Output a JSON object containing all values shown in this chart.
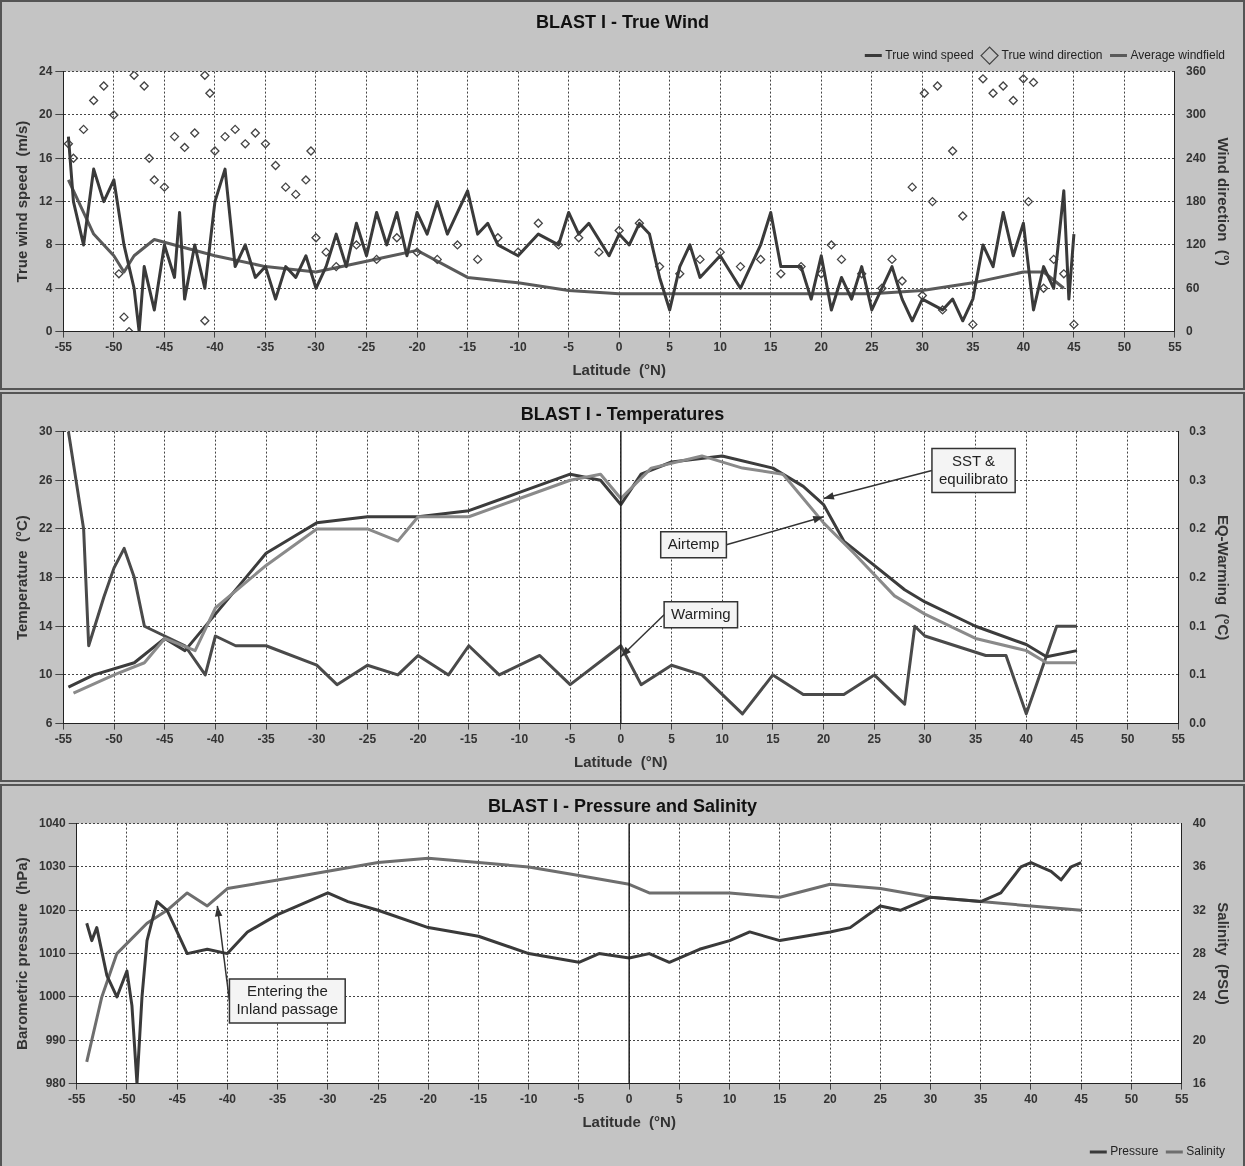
{
  "chart_data": [
    {
      "type": "line",
      "title": "BLAST I - True Wind",
      "xlabel": "Latitude  (°N)",
      "ylabel": "True wind speed  (m/s)",
      "y2label": "Wind direction  (°)",
      "xlim": [
        -55,
        55
      ],
      "xticks": [
        -55,
        -50,
        -45,
        -40,
        -35,
        -30,
        -25,
        -20,
        -15,
        -10,
        -5,
        0,
        5,
        10,
        15,
        20,
        25,
        30,
        35,
        40,
        45,
        50,
        55
      ],
      "ylim": [
        0,
        24
      ],
      "yticks": [
        0,
        4,
        8,
        12,
        16,
        20,
        24
      ],
      "y2lim": [
        0,
        360
      ],
      "y2ticks": [
        0,
        60,
        120,
        180,
        240,
        300,
        360
      ],
      "grid": true,
      "legend": "top right",
      "series": [
        {
          "name": "True wind speed",
          "color": "#3a3a3a",
          "x": [
            -54.5,
            -54,
            -53,
            -52,
            -51,
            -50,
            -49,
            -48,
            -47.5,
            -47,
            -46,
            -45,
            -44,
            -43.5,
            -43,
            -42,
            -41,
            -40,
            -39,
            -38,
            -37,
            -36,
            -35,
            -34,
            -33,
            -32,
            -31,
            -30,
            -29,
            -28,
            -27,
            -26,
            -25,
            -24,
            -23,
            -22,
            -21,
            -20,
            -19,
            -18,
            -17,
            -16,
            -15,
            -14,
            -13,
            -12,
            -10,
            -8,
            -6,
            -5,
            -4,
            -3,
            -1,
            0,
            1,
            2,
            3,
            4,
            5,
            6,
            7,
            8,
            10,
            12,
            14,
            15,
            16,
            18,
            19,
            20,
            21,
            22,
            23,
            24,
            25,
            27,
            28,
            29,
            30,
            32,
            33,
            34,
            35,
            36,
            37,
            38,
            39,
            40,
            41,
            42,
            43,
            44,
            44.5,
            45
          ],
          "values": [
            18,
            12,
            8,
            15,
            12,
            14,
            8,
            4,
            0,
            6,
            2,
            8,
            5,
            11,
            3,
            8,
            4,
            12,
            15,
            6,
            8,
            5,
            6,
            3,
            6,
            5,
            7,
            4,
            6,
            9,
            6,
            10,
            7,
            11,
            8,
            11,
            7,
            11,
            9,
            12,
            9,
            11,
            13,
            9,
            10,
            8,
            7,
            9,
            8,
            11,
            9,
            10,
            7,
            9,
            8,
            10,
            9,
            5,
            2,
            6,
            8,
            5,
            7,
            4,
            8,
            11,
            6,
            6,
            3,
            7,
            2,
            5,
            3,
            6,
            2,
            6,
            3,
            1,
            3,
            2,
            3,
            1,
            3,
            8,
            6,
            11,
            7,
            10,
            2,
            6,
            4,
            13,
            3,
            9
          ]
        },
        {
          "name": "True wind direction",
          "type": "scatter",
          "axis": "y2",
          "marker": "diamond",
          "color": "#444444",
          "x": [
            -54.5,
            -54,
            -53,
            -52,
            -51,
            -50,
            -49.5,
            -49,
            -48.5,
            -48,
            -47,
            -46.5,
            -46,
            -45,
            -44,
            -43,
            -42,
            -41,
            -41,
            -40.5,
            -40,
            -39,
            -38,
            -37,
            -36,
            -35,
            -34,
            -33,
            -32,
            -31,
            -30.5,
            -30,
            -29,
            -28,
            -26,
            -24,
            -22,
            -20,
            -18,
            -16,
            -14,
            -12,
            -10,
            -8,
            -6,
            -4,
            -2,
            0,
            2,
            4,
            6,
            8,
            10,
            12,
            14,
            16,
            18,
            20,
            21,
            22,
            24,
            26,
            27,
            28,
            29,
            30,
            30.2,
            31,
            31.5,
            32,
            33,
            34,
            35,
            36,
            37,
            38,
            39,
            40,
            40.5,
            41,
            42,
            43,
            44,
            45
          ],
          "values": [
            260,
            240,
            280,
            320,
            340,
            300,
            80,
            20,
            0,
            355,
            340,
            240,
            210,
            200,
            270,
            255,
            275,
            15,
            355,
            330,
            250,
            270,
            280,
            260,
            275,
            260,
            230,
            200,
            190,
            210,
            250,
            130,
            110,
            90,
            120,
            100,
            130,
            110,
            100,
            120,
            100,
            130,
            110,
            150,
            120,
            130,
            110,
            140,
            150,
            90,
            80,
            100,
            110,
            90,
            100,
            80,
            90,
            80,
            120,
            100,
            80,
            60,
            100,
            70,
            200,
            50,
            330,
            180,
            340,
            30,
            250,
            160,
            10,
            350,
            330,
            340,
            320,
            350,
            180,
            345,
            60,
            100,
            80,
            10
          ]
        },
        {
          "name": "Average windfield",
          "color": "#5a5a5a",
          "x": [
            -54.5,
            -52,
            -50,
            -49,
            -48,
            -46,
            -44,
            -40,
            -35,
            -30,
            -25,
            -20,
            -15,
            -10,
            -5,
            0,
            10,
            20,
            25,
            30,
            35,
            40,
            42,
            44
          ],
          "values": [
            14,
            9,
            7,
            5.5,
            7,
            8.5,
            8,
            7,
            6,
            5.5,
            6.5,
            7.5,
            5,
            4.5,
            3.8,
            3.5,
            3.5,
            3.5,
            3.5,
            3.8,
            4.5,
            5.5,
            5.5,
            4
          ]
        }
      ]
    },
    {
      "type": "line",
      "title": "BLAST I - Temperatures",
      "xlabel": "Latitude  (°N)",
      "ylabel": "Temperature  (°C)",
      "y2label": "EQ-Warming  (°C)",
      "xlim": [
        -55,
        55
      ],
      "xticks": [
        -55,
        -50,
        -45,
        -40,
        -35,
        -30,
        -25,
        -20,
        -15,
        -10,
        -5,
        0,
        5,
        10,
        15,
        20,
        25,
        30,
        35,
        40,
        45,
        50,
        55
      ],
      "ylim": [
        6,
        30
      ],
      "yticks": [
        6,
        10,
        14,
        18,
        22,
        26,
        30
      ],
      "y2lim": [
        0,
        0.3
      ],
      "y2ticks": [
        {
          "value": 0,
          "label": "0.0"
        },
        {
          "value": 0.05,
          "label": "0.1"
        },
        {
          "value": 0.1,
          "label": "0.1"
        },
        {
          "value": 0.15,
          "label": "0.2"
        },
        {
          "value": 0.2,
          "label": "0.2"
        },
        {
          "value": 0.25,
          "label": "0.3"
        },
        {
          "value": 0.3,
          "label": "0.3"
        }
      ],
      "grid": true,
      "ref_lines": [
        {
          "axis": "x",
          "value": 0
        }
      ],
      "annotations": [
        {
          "text": "SST & equilibrato",
          "x": 20,
          "y": 24.5
        },
        {
          "text": "Airtemp",
          "x": 20,
          "y": 23
        },
        {
          "text": "Warming",
          "x": 0,
          "y": 11.5
        }
      ],
      "series": [
        {
          "color": "#8a8a8a",
          "x": [
            -54,
            -50,
            -47,
            -45,
            -42,
            -40,
            -35,
            -30,
            -25,
            -22,
            -20,
            -15,
            -10,
            -5,
            -2,
            0,
            3,
            8,
            12,
            16,
            20,
            23,
            27,
            30,
            35,
            40,
            42,
            45
          ],
          "values": [
            8.5,
            10,
            11,
            13,
            12,
            15.5,
            19,
            22,
            22,
            21,
            23,
            23,
            24.5,
            26,
            26.5,
            24.5,
            27,
            28,
            27,
            26.5,
            22.5,
            20,
            16.5,
            15,
            13,
            12,
            11,
            11
          ]
        },
        {
          "color": "#3c3c3c",
          "x": [
            -54.5,
            -52,
            -48,
            -45,
            -43,
            -40,
            -37,
            -35,
            -32,
            -30,
            -25,
            -20,
            -15,
            -10,
            -5,
            -2,
            0,
            2,
            5,
            10,
            15,
            18,
            20,
            22,
            25,
            28,
            30,
            35,
            40,
            42,
            45
          ],
          "values": [
            9,
            10,
            11,
            13,
            12,
            15,
            18,
            20,
            21.5,
            22.5,
            23,
            23,
            23.5,
            25,
            26.5,
            26,
            24,
            26.5,
            27.5,
            28,
            27,
            25.5,
            24,
            21,
            19,
            17,
            16,
            14,
            12.5,
            11.5,
            12
          ]
        },
        {
          "axis": "y2",
          "color": "#4a4a4a",
          "x": [
            -54.5,
            -53,
            -52.5,
            -51,
            -50,
            -49,
            -48,
            -47,
            -45,
            -43,
            -41,
            -40,
            -38,
            -35,
            -30,
            -28,
            -25,
            -22,
            -20,
            -17,
            -15,
            -12,
            -8,
            -5,
            0,
            2,
            5,
            8,
            12,
            15,
            18,
            20,
            22,
            25,
            28,
            29,
            30,
            33,
            36,
            38,
            40,
            41,
            42,
            43,
            45
          ],
          "values": [
            0.3,
            0.2,
            0.08,
            0.13,
            0.16,
            0.18,
            0.15,
            0.1,
            0.09,
            0.08,
            0.05,
            0.09,
            0.08,
            0.08,
            0.06,
            0.04,
            0.06,
            0.05,
            0.07,
            0.05,
            0.08,
            0.05,
            0.07,
            0.04,
            0.08,
            0.04,
            0.06,
            0.05,
            0.01,
            0.05,
            0.03,
            0.03,
            0.03,
            0.05,
            0.02,
            0.1,
            0.09,
            0.08,
            0.07,
            0.07,
            0.01,
            0.04,
            0.07,
            0.1,
            0.1
          ]
        }
      ]
    },
    {
      "type": "line",
      "title": "BLAST I - Pressure and Salinity",
      "xlabel": "Latitude  (°N)",
      "ylabel": "Barometric pressure  (hPa)",
      "y2label": "Salinity  (PSU)",
      "xlim": [
        -55,
        55
      ],
      "xticks": [
        -55,
        -50,
        -45,
        -40,
        -35,
        -30,
        -25,
        -20,
        -15,
        -10,
        -5,
        0,
        5,
        10,
        15,
        20,
        25,
        30,
        35,
        40,
        45,
        50,
        55
      ],
      "ylim": [
        980,
        1040
      ],
      "yticks": [
        980,
        990,
        1000,
        1010,
        1020,
        1030,
        1040
      ],
      "y2lim": [
        16,
        40
      ],
      "y2ticks": [
        16,
        20,
        24,
        28,
        32,
        36,
        40
      ],
      "grid": true,
      "legend": "bottom right",
      "ref_lines": [
        {
          "axis": "x",
          "value": 0
        }
      ],
      "annotations": [
        {
          "text": "Entering the Inland passage",
          "x": -41,
          "y": 1021
        }
      ],
      "series": [
        {
          "name": "Pressure",
          "type": "line",
          "color": "#3a3a3a",
          "x": [
            -54,
            -53.5,
            -53,
            -52,
            -51,
            -50,
            -49.5,
            -49,
            -48.5,
            -48,
            -47,
            -46,
            -45,
            -44,
            -42,
            -40,
            -38,
            -35,
            -30,
            -28,
            -25,
            -20,
            -15,
            -10,
            -5,
            -3,
            0,
            2,
            4,
            7,
            10,
            12,
            15,
            20,
            22,
            25,
            27,
            30,
            35,
            37,
            39,
            40,
            42,
            43,
            44,
            45
          ],
          "values": [
            1017,
            1013,
            1016,
            1005,
            1000,
            1006,
            998,
            980,
            1000,
            1013,
            1022,
            1020,
            1015,
            1010,
            1011,
            1010,
            1015,
            1019,
            1024,
            1022,
            1020,
            1016,
            1014,
            1010,
            1008,
            1010,
            1009,
            1010,
            1008,
            1011,
            1013,
            1015,
            1013,
            1015,
            1016,
            1021,
            1020,
            1023,
            1022,
            1024,
            1030,
            1031,
            1029,
            1027,
            1030,
            1031
          ]
        },
        {
          "name": "Salinity",
          "axis": "y2",
          "color": "#6e6e6e",
          "x": [
            -54,
            -52.5,
            -51,
            -48,
            -46,
            -44,
            -42,
            -40,
            -35,
            -30,
            -25,
            -20,
            -15,
            -10,
            -5,
            0,
            2,
            10,
            15,
            20,
            25,
            30,
            35,
            40,
            45
          ],
          "values": [
            18,
            24,
            28,
            30.8,
            32,
            33.6,
            32.4,
            34,
            34.8,
            35.6,
            36.4,
            36.8,
            36.4,
            36,
            35.2,
            34.4,
            33.6,
            33.6,
            33.2,
            34.4,
            34,
            33.2,
            32.8,
            32.4,
            32
          ]
        }
      ]
    }
  ]
}
